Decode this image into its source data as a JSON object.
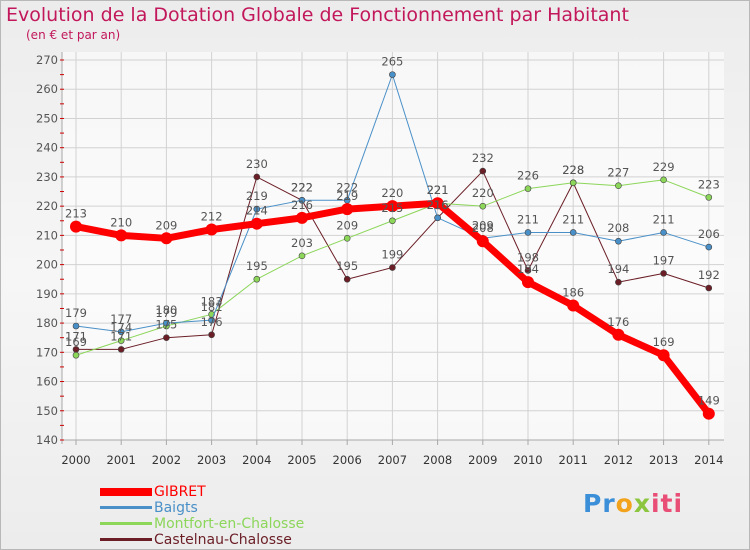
{
  "title": "Evolution de la Dotation Globale de Fonctionnement par Habitant",
  "subtitle": "(en € et par an)",
  "colors": {
    "axis": "#a8a8a8",
    "grid": "#d2d2d2",
    "text": "#555555",
    "tick_red": "#cc0000",
    "point_border": "#444444"
  },
  "logo": {
    "p1": "Pr",
    "p2": "o",
    "p3": "x",
    "p4": "iti"
  },
  "chart_data": {
    "type": "line",
    "title": "Evolution de la Dotation Globale de Fonctionnement par Habitant",
    "subtitle": "(en € et par an)",
    "x": [
      "2000",
      "2001",
      "2002",
      "2003",
      "2004",
      "2005",
      "2006",
      "2007",
      "2008",
      "2009",
      "2010",
      "2011",
      "2012",
      "2013",
      "2014"
    ],
    "ylim": [
      140,
      270
    ],
    "yticks": [
      140,
      150,
      160,
      170,
      180,
      190,
      200,
      210,
      220,
      230,
      240,
      250,
      260,
      270
    ],
    "grid": true,
    "legend_position": "bottom-left",
    "series": [
      {
        "name": "GIBRET",
        "color": "#ff0000",
        "width": 7,
        "marker_size": 6,
        "values": [
          213,
          210,
          209,
          212,
          214,
          216,
          219,
          220,
          221,
          208,
          194,
          186,
          176,
          169,
          149
        ]
      },
      {
        "name": "Baigts",
        "color": "#4a90c8",
        "width": 1,
        "marker_size": 3,
        "values": [
          179,
          177,
          180,
          181,
          219,
          222,
          222,
          265,
          216,
          209,
          211,
          211,
          208,
          211,
          206
        ]
      },
      {
        "name": "Montfort-en-Chalosse",
        "color": "#8cd65a",
        "width": 1,
        "marker_size": 3,
        "values": [
          169,
          174,
          179,
          183,
          195,
          203,
          209,
          215,
          221,
          220,
          226,
          228,
          227,
          229,
          223
        ]
      },
      {
        "name": "Castelnau-Chalosse",
        "color": "#6b1e26",
        "width": 1,
        "marker_size": 3,
        "values": [
          171,
          171,
          175,
          176,
          230,
          222,
          195,
          199,
          216,
          232,
          198,
          228,
          194,
          197,
          192
        ]
      }
    ]
  }
}
